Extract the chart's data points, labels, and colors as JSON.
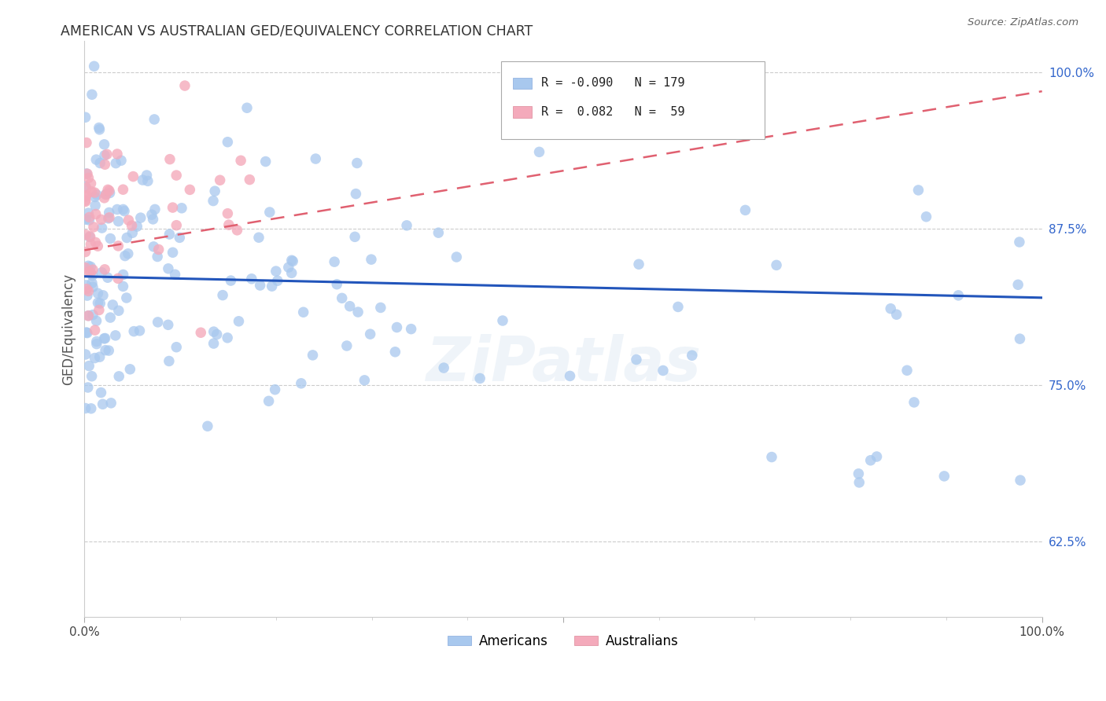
{
  "title": "AMERICAN VS AUSTRALIAN GED/EQUIVALENCY CORRELATION CHART",
  "source": "Source: ZipAtlas.com",
  "ylabel": "GED/Equivalency",
  "xlim": [
    0.0,
    1.0
  ],
  "ylim": [
    0.565,
    1.025
  ],
  "yticks": [
    0.625,
    0.75,
    0.875,
    1.0
  ],
  "ytick_labels": [
    "62.5%",
    "75.0%",
    "87.5%",
    "100.0%"
  ],
  "legend_blue_r": "-0.090",
  "legend_blue_n": "179",
  "legend_pink_r": " 0.082",
  "legend_pink_n": " 59",
  "blue_dot_color": "#a8c8ee",
  "pink_dot_color": "#f4aabb",
  "blue_line_color": "#2255bb",
  "pink_line_color": "#e06070",
  "background_color": "#ffffff",
  "grid_color": "#cccccc",
  "watermark": "ZiPatlas",
  "title_color": "#333333",
  "source_color": "#666666",
  "ylabel_color": "#555555",
  "ytick_color": "#3366cc"
}
